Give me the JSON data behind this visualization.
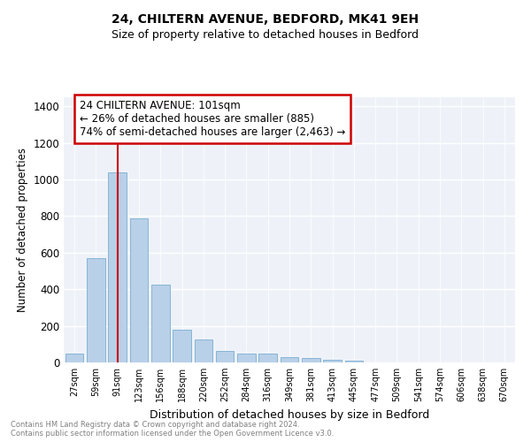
{
  "title1": "24, CHILTERN AVENUE, BEDFORD, MK41 9EH",
  "title2": "Size of property relative to detached houses in Bedford",
  "xlabel": "Distribution of detached houses by size in Bedford",
  "ylabel": "Number of detached properties",
  "categories": [
    "27sqm",
    "59sqm",
    "91sqm",
    "123sqm",
    "156sqm",
    "188sqm",
    "220sqm",
    "252sqm",
    "284sqm",
    "316sqm",
    "349sqm",
    "381sqm",
    "413sqm",
    "445sqm",
    "477sqm",
    "509sqm",
    "541sqm",
    "574sqm",
    "606sqm",
    "638sqm",
    "670sqm"
  ],
  "values": [
    50,
    570,
    1040,
    790,
    425,
    180,
    125,
    65,
    50,
    50,
    30,
    25,
    15,
    8,
    0,
    0,
    0,
    0,
    0,
    0,
    0
  ],
  "bar_color": "#b8d0e8",
  "bar_edge_color": "#7aaed0",
  "vline_x_index": 2,
  "vline_color": "#cc0000",
  "annotation_title": "24 CHILTERN AVENUE: 101sqm",
  "annotation_line1": "← 26% of detached houses are smaller (885)",
  "annotation_line2": "74% of semi-detached houses are larger (2,463) →",
  "annotation_box_color": "#cc0000",
  "ylim": [
    0,
    1450
  ],
  "yticks": [
    0,
    200,
    400,
    600,
    800,
    1000,
    1200,
    1400
  ],
  "bg_color": "#eef2f8",
  "grid_color": "#ffffff",
  "footer1": "Contains HM Land Registry data © Crown copyright and database right 2024.",
  "footer2": "Contains public sector information licensed under the Open Government Licence v3.0."
}
